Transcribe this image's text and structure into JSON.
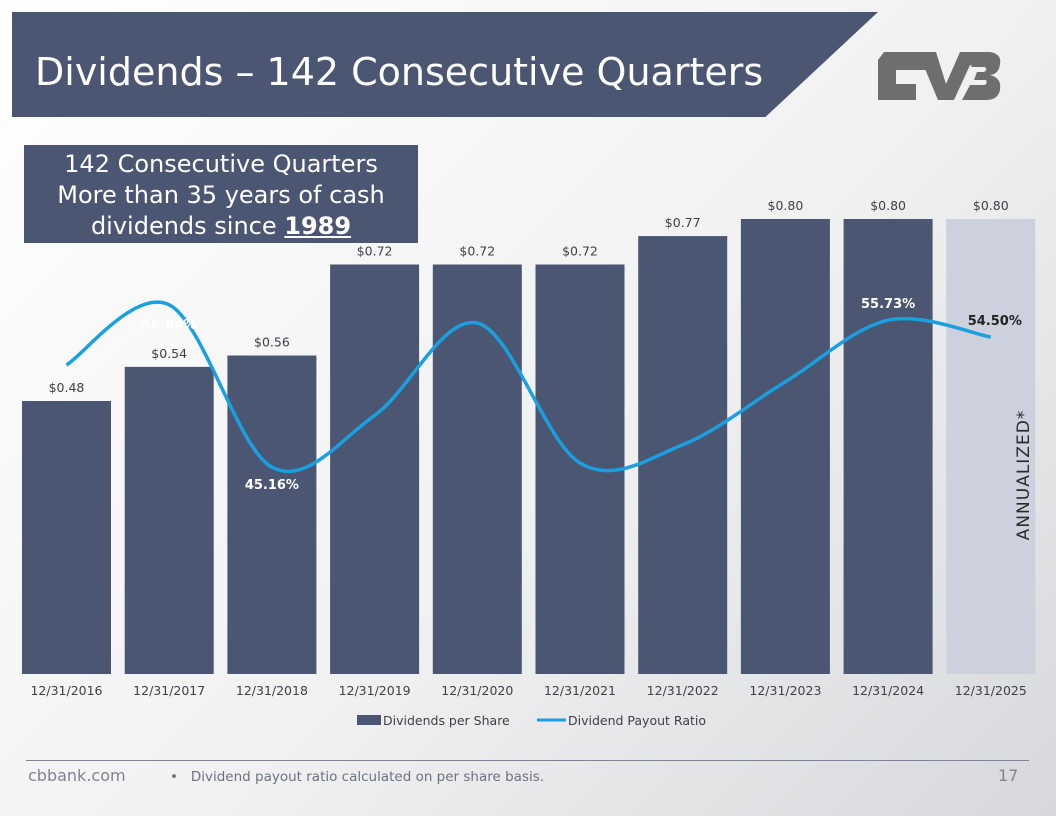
{
  "slide": {
    "title": "Dividends – 142 Consecutive Quarters",
    "callout": {
      "line1": "142 Consecutive Quarters",
      "line2": "More than 35 years of cash",
      "line3_prefix": "dividends since ",
      "year": "1989"
    },
    "footer": {
      "site": "cbbank.com",
      "note": "Dividend payout ratio calculated on per share basis.",
      "page": "17"
    },
    "logo_icon": "cvb-logo-icon"
  },
  "colors": {
    "banner": "#4b5672",
    "bar": "#4b5672",
    "bar_annualized": "#cdd1dd",
    "line": "#1a9fe0",
    "text_dark": "#3f3f46",
    "logo": "#6e6e6e"
  },
  "chart_data": {
    "type": "bar",
    "title": "",
    "xlabel": "",
    "ylabel": "",
    "categories": [
      "12/31/2016",
      "12/31/2017",
      "12/31/2018",
      "12/31/2019",
      "12/31/2020",
      "12/31/2021",
      "12/31/2022",
      "12/31/2023",
      "12/31/2024",
      "12/31/2025"
    ],
    "series": [
      {
        "name": "Dividends per Share",
        "kind": "bar",
        "values": [
          0.48,
          0.54,
          0.56,
          0.72,
          0.72,
          0.72,
          0.77,
          0.8,
          0.8,
          0.8
        ],
        "labels": [
          "$0.48",
          "$0.54",
          "$0.56",
          "$0.72",
          "$0.72",
          "$0.72",
          "$0.77",
          "$0.80",
          "$0.80",
          "$0.80"
        ]
      },
      {
        "name": "Dividend Payout Ratio",
        "kind": "line",
        "values": [
          52.5,
          56.8,
          45.2,
          48.9,
          55.5,
          45.5,
          46.8,
          51.3,
          55.7,
          54.5
        ],
        "labels": [
          null,
          "56.84%",
          "45.16%",
          null,
          null,
          null,
          null,
          null,
          "55.73%",
          "54.50%"
        ]
      }
    ],
    "ylim_bars": [
      0,
      0.8
    ],
    "ylim_line": [
      30,
      70
    ],
    "highlight": {
      "index": 9,
      "text": "ANNUALIZED*"
    },
    "legend": {
      "position": "bottom",
      "items": [
        "Dividends per Share",
        "Dividend Payout Ratio"
      ]
    }
  }
}
